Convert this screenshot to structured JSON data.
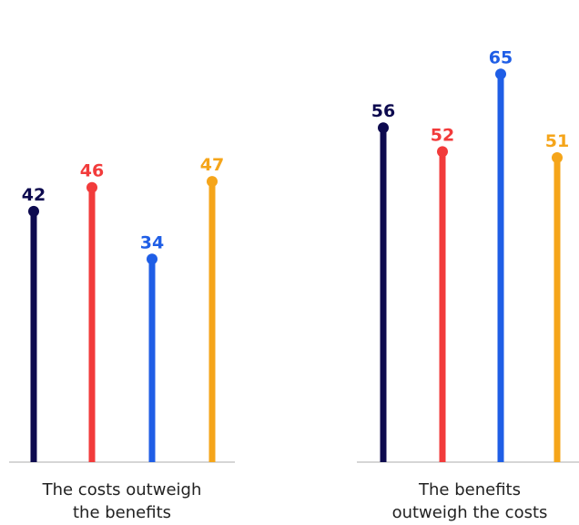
{
  "chart_data": {
    "type": "lollipop",
    "groups": [
      {
        "label_lines": [
          "The costs outweigh",
          "the benefits"
        ],
        "values": [
          42,
          46,
          34,
          47
        ]
      },
      {
        "label_lines": [
          "The benefits",
          "outweigh the costs"
        ],
        "values": [
          56,
          52,
          65,
          51
        ]
      }
    ],
    "series_colors": [
      "#0d0a4f",
      "#f23b3b",
      "#1f5ee6",
      "#f5a51a"
    ],
    "ylim": [
      0,
      65
    ],
    "grid": false,
    "legend": "none"
  }
}
